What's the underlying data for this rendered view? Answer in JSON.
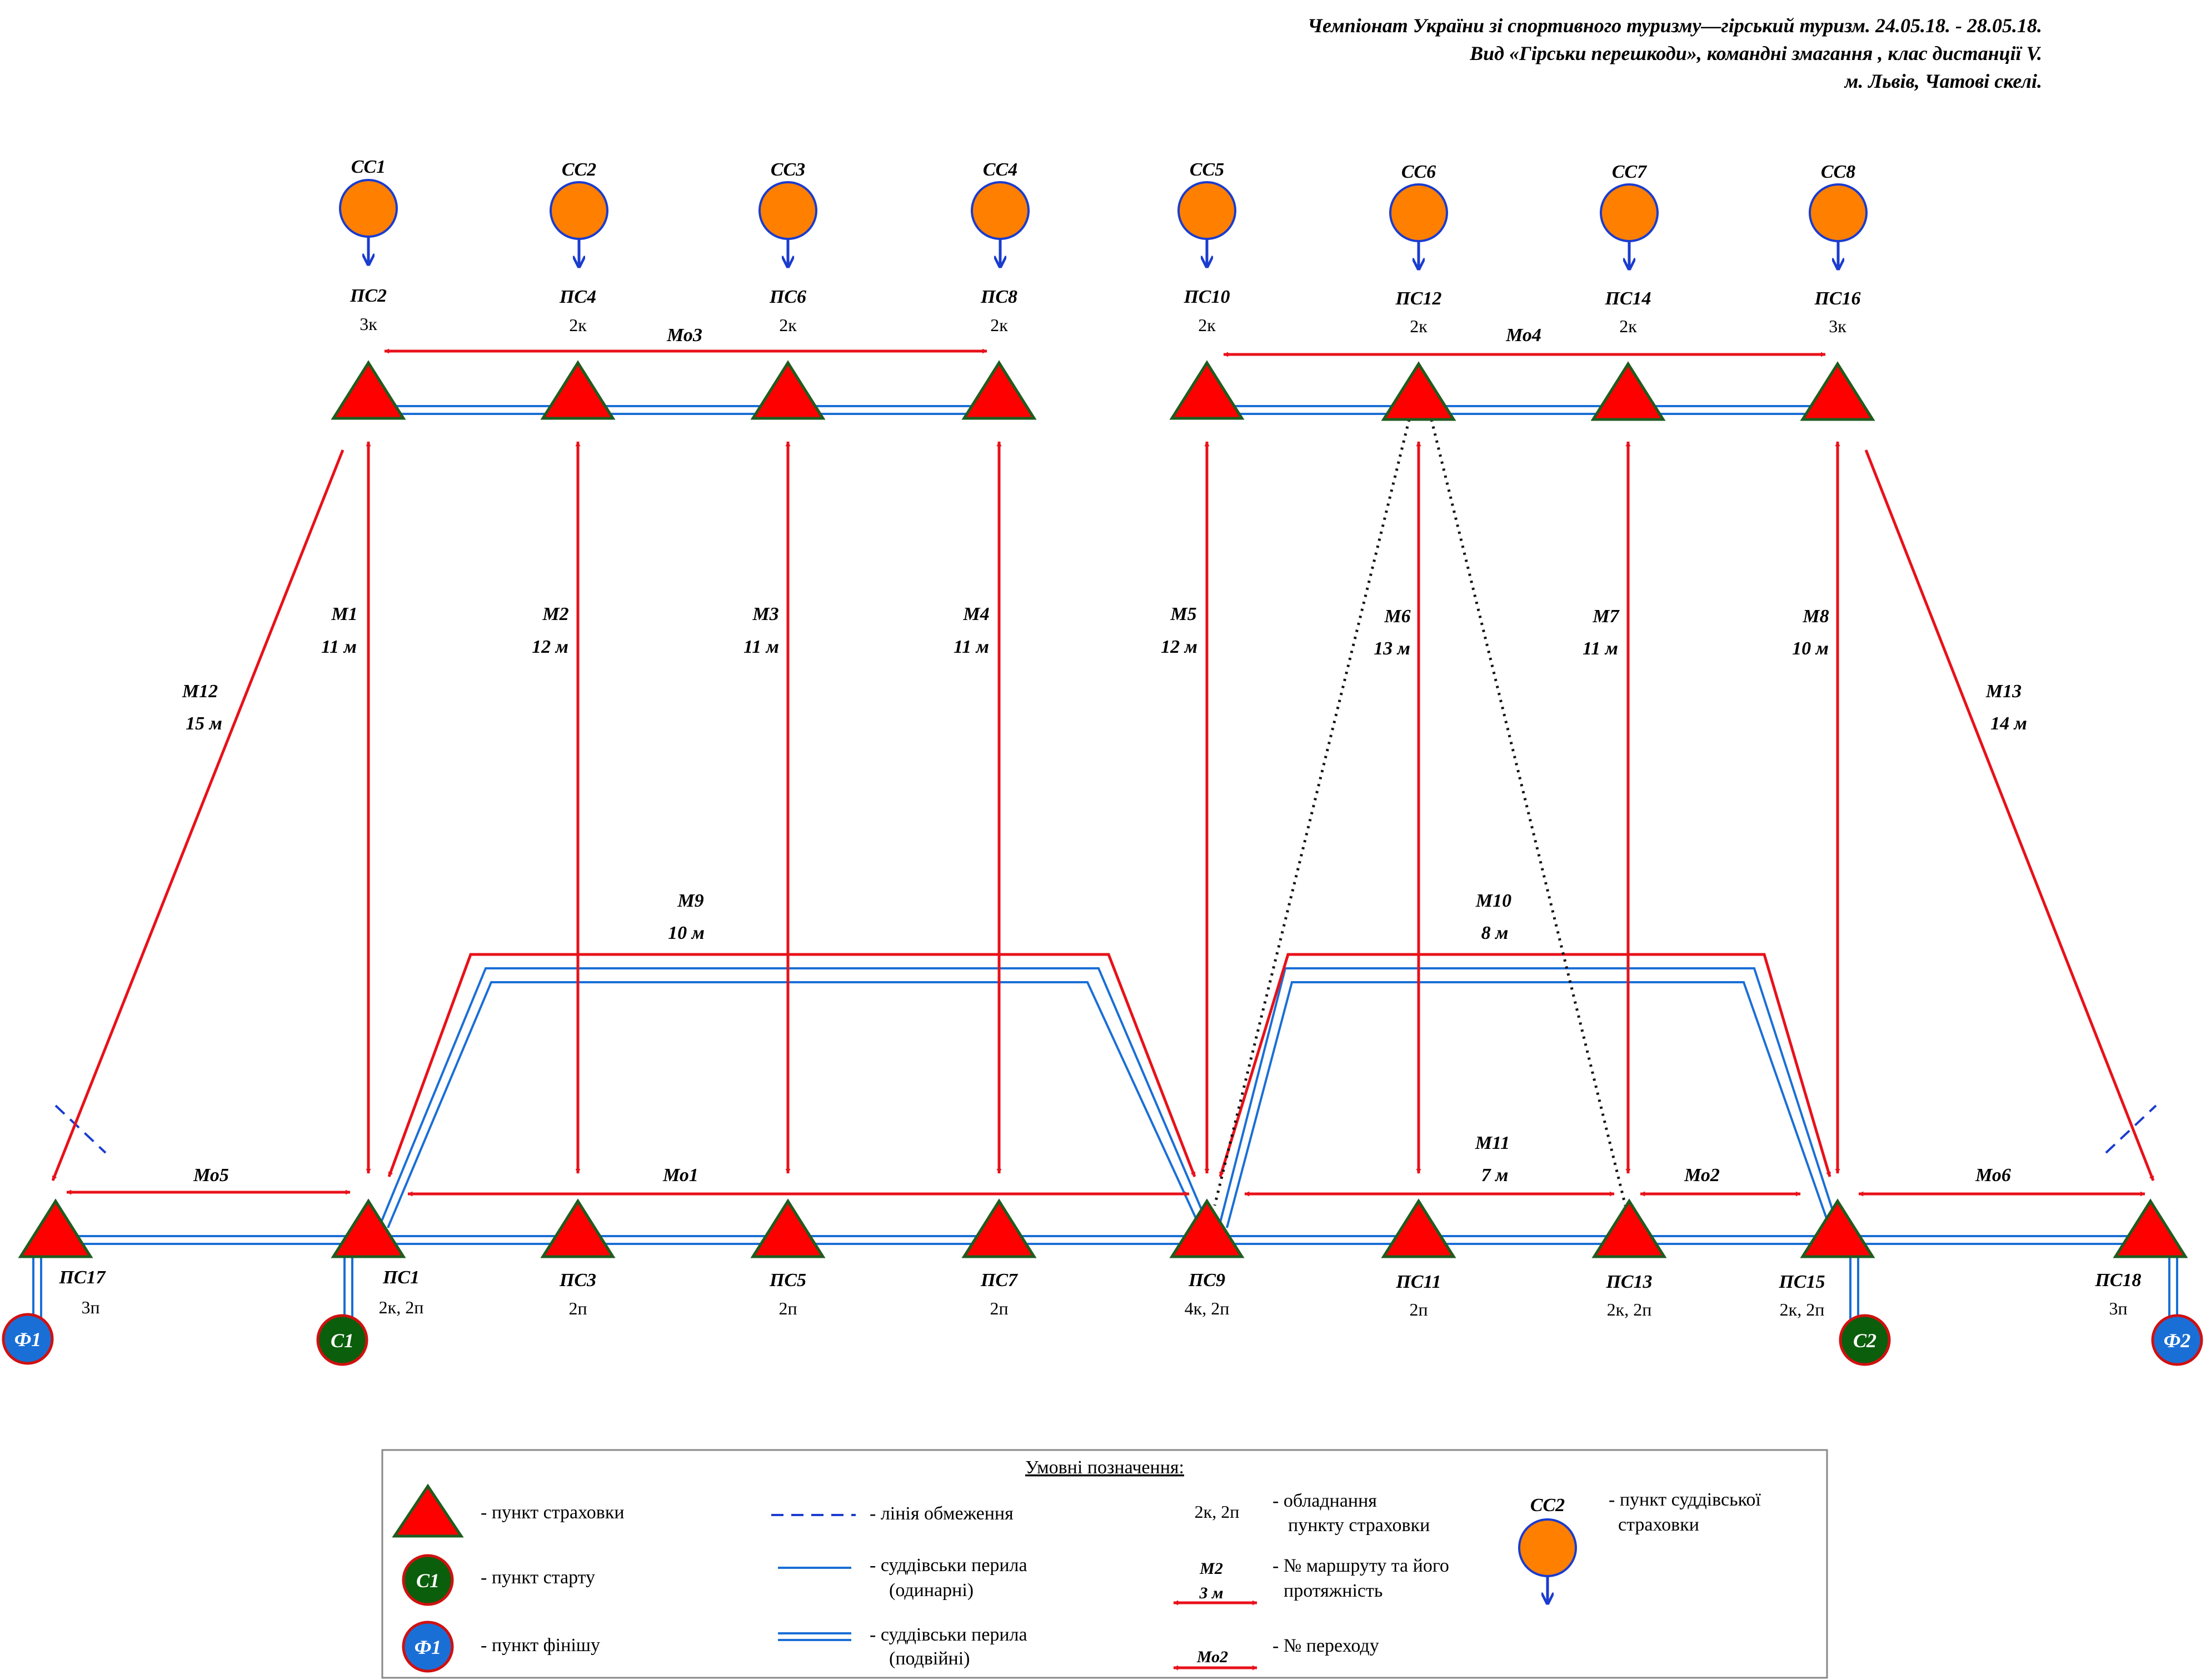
{
  "header": {
    "line1": "Чемпіонат України зі спортивного туризму—гірський туризм. 24.05.18. - 28.05.18.",
    "line2": "Вид «Гірськи перешкоди», командні змагання , клас дистанції V.",
    "line3": "м. Львів, Чатові скелі."
  },
  "colors": {
    "triangle_fill": "#ff0000",
    "triangle_stroke": "#1f5c1f",
    "route_red": "#e8111a",
    "rail_blue": "#1a6fd6",
    "judge_orange": "#ff7f00",
    "judge_arrow": "#1a3ccf",
    "start_green": "#0b5e0b",
    "finish_blue": "#1a6fd6",
    "ring_red": "#d01010"
  },
  "judges": [
    {
      "id": "jb1",
      "label": "СС1"
    },
    {
      "id": "jb2",
      "label": "СС2"
    },
    {
      "id": "jb3",
      "label": "СС3"
    },
    {
      "id": "jb4",
      "label": "СС4"
    },
    {
      "id": "jb5",
      "label": "СС5"
    },
    {
      "id": "jb6",
      "label": "СС6"
    },
    {
      "id": "jb7",
      "label": "СС7"
    },
    {
      "id": "jb8",
      "label": "СС8"
    }
  ],
  "belay_points_top": [
    {
      "label": "ПС2",
      "equip": "3к"
    },
    {
      "label": "ПС4",
      "equip": "2к"
    },
    {
      "label": "ПС6",
      "equip": "2к"
    },
    {
      "label": "ПС8",
      "equip": "2к"
    },
    {
      "label": "ПС10",
      "equip": "2к"
    },
    {
      "label": "ПС12",
      "equip": "2к"
    },
    {
      "label": "ПС14",
      "equip": "2к"
    },
    {
      "label": "ПС16",
      "equip": "3к"
    }
  ],
  "belay_points_bottom": [
    {
      "label": "ПС17",
      "equip": "3п"
    },
    {
      "label": "ПС1",
      "equip": "2к, 2п"
    },
    {
      "label": "ПС3",
      "equip": "2п"
    },
    {
      "label": "ПС5",
      "equip": "2п"
    },
    {
      "label": "ПС7",
      "equip": "2п"
    },
    {
      "label": "ПС9",
      "equip": "4к, 2п"
    },
    {
      "label": "ПС11",
      "equip": "2п"
    },
    {
      "label": "ПС13",
      "equip": "2к, 2п"
    },
    {
      "label": "ПС15",
      "equip": "2к, 2п"
    },
    {
      "label": "ПС18",
      "equip": "3п"
    }
  ],
  "routes": [
    {
      "name": "М1",
      "length": "11 м"
    },
    {
      "name": "М2",
      "length": "12 м"
    },
    {
      "name": "М3",
      "length": "11 м"
    },
    {
      "name": "М4",
      "length": "11 м"
    },
    {
      "name": "М5",
      "length": "12 м"
    },
    {
      "name": "М6",
      "length": "13 м"
    },
    {
      "name": "М7",
      "length": "11 м"
    },
    {
      "name": "М8",
      "length": "10 м"
    },
    {
      "name": "М9",
      "length": "10 м"
    },
    {
      "name": "М10",
      "length": "8 м"
    },
    {
      "name": "М11",
      "length": "7 м"
    },
    {
      "name": "М12",
      "length": "15 м"
    },
    {
      "name": "М13",
      "length": "14 м"
    }
  ],
  "traverses": [
    "Мо1",
    "Мо2",
    "Мо3",
    "Мо4",
    "Мо5",
    "Мо6"
  ],
  "start_points": [
    "С1",
    "С2"
  ],
  "finish_points": [
    "Ф1",
    "Ф2"
  ],
  "legend": {
    "title": "Умовні позначення:",
    "belay_point": "- пункт страховки",
    "start_point": "- пункт старту",
    "finish_point": "- пункт фінішу",
    "restriction_line": "- лінія обмеження",
    "single_rail_1": "- суддівськи перила",
    "single_rail_2": "(одинарні)",
    "double_rail_1": "- суддівськи перила",
    "double_rail_2": "(подвійні)",
    "equip_sample": "2к, 2п",
    "equip_desc_1": "- обладнання",
    "equip_desc_2": "пункту страховки",
    "route_sample_name": "М2",
    "route_sample_len": "3 м",
    "route_desc_1": "- № маршруту та його",
    "route_desc_2": "протяжність",
    "traverse_sample": "Мо2",
    "traverse_desc": "- № переходу",
    "judge_sample": "СС2",
    "judge_desc_1": "- пункт суддівської",
    "judge_desc_2": "страховки",
    "start_sample": "С1",
    "finish_sample": "Ф1"
  }
}
